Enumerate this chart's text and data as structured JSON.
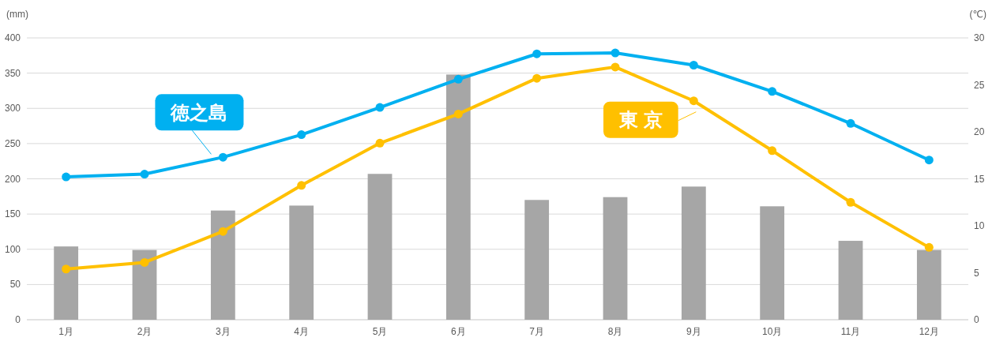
{
  "chart_data": {
    "type": "bar",
    "ylabel": "(mm)",
    "y2label": "(℃)",
    "categories": [
      "1月",
      "2月",
      "3月",
      "4月",
      "5月",
      "6月",
      "7月",
      "8月",
      "9月",
      "10月",
      "11月",
      "12月"
    ],
    "series": [
      {
        "color": "#a6a6a6",
        "values": [
          104,
          99,
          155,
          162,
          207,
          348,
          170,
          174,
          189,
          161,
          112,
          99
        ]
      },
      {
        "name": "徳之島",
        "type": "line",
        "axis": "y2",
        "color": "#00b0f0",
        "values": [
          15.2,
          15.5,
          17.3,
          19.7,
          22.6,
          25.6,
          28.3,
          28.4,
          27.1,
          24.3,
          20.9,
          17.0
        ]
      },
      {
        "name": "東 京",
        "type": "line",
        "axis": "y2",
        "color": "#ffc000",
        "values": [
          5.4,
          6.1,
          9.4,
          14.3,
          18.8,
          21.9,
          25.7,
          26.9,
          23.3,
          18.0,
          12.5,
          7.7
        ]
      }
    ],
    "ylim": [
      0,
      400
    ],
    "yticks": [
      0,
      50,
      100,
      150,
      200,
      250,
      300,
      350,
      400
    ],
    "y2lim": [
      0,
      30
    ],
    "y2ticks": [
      0,
      5,
      10,
      15,
      20,
      25,
      30
    ],
    "grid": "y",
    "marker": "circle",
    "line_style": "solid"
  }
}
